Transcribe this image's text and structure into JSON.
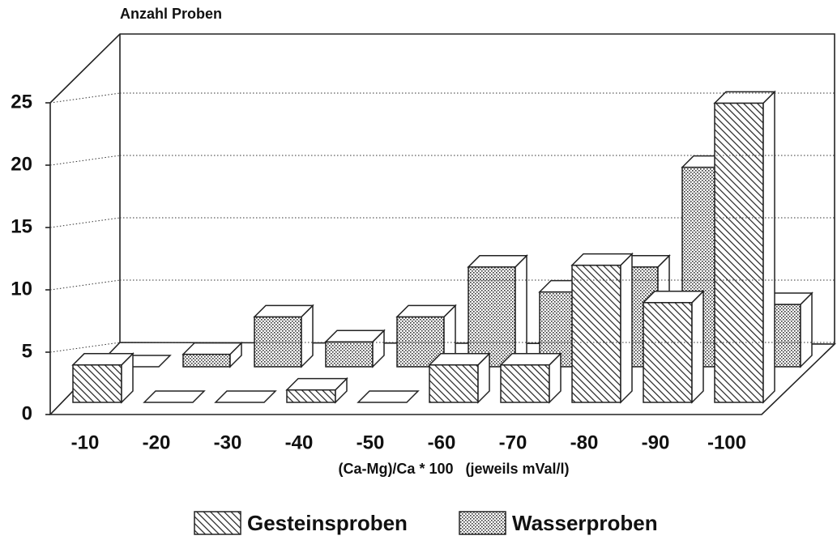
{
  "chart_data": {
    "type": "bar3d",
    "y_label": "Anzahl Proben",
    "x_label": "(Ca-Mg)/Ca * 100   (jeweils mVal/l)",
    "categories": [
      "-10",
      "-20",
      "-30",
      "-40",
      "-50",
      "-60",
      "-70",
      "-80",
      "-90",
      "-100"
    ],
    "series": [
      {
        "name": "Gesteinsproben",
        "pattern": "hatch",
        "values": [
          3,
          0,
          0,
          1,
          0,
          3,
          3,
          11,
          8,
          24
        ]
      },
      {
        "name": "Wasserproben",
        "pattern": "dots",
        "values": [
          0,
          1,
          4,
          2,
          4,
          8,
          6,
          8,
          16,
          5
        ]
      }
    ],
    "ylim": [
      0,
      25
    ],
    "yticks": [
      0,
      5,
      10,
      15,
      20,
      25
    ],
    "grid": true
  }
}
